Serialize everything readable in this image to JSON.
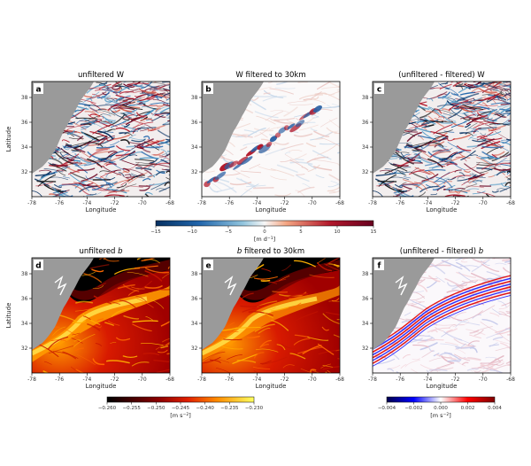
{
  "chart_data": [
    {
      "type": "heatmap",
      "panel": "a",
      "title": "unfiltered W",
      "xlabel": "Longitude",
      "ylabel": "Latitude",
      "xticks": [
        "-78",
        "-76",
        "-74",
        "-72",
        "-70",
        "-68"
      ],
      "yticks": [
        "38",
        "36",
        "34",
        "32"
      ],
      "field": "vertical-velocity-unfiltered"
    },
    {
      "type": "heatmap",
      "panel": "b",
      "title": "W filtered to 30km",
      "xlabel": "Longitude",
      "ylabel": "",
      "xticks": [
        "-78",
        "-76",
        "-74",
        "-72",
        "-70",
        "-68"
      ],
      "yticks": [
        "38",
        "36",
        "34",
        "32"
      ],
      "field": "vertical-velocity-filtered"
    },
    {
      "type": "heatmap",
      "panel": "c",
      "title": "(unfiltered - filtered) W",
      "xlabel": "Longitude",
      "ylabel": "",
      "xticks": [
        "-78",
        "-76",
        "-74",
        "-72",
        "-70",
        "-68"
      ],
      "yticks": [
        "38",
        "36",
        "34",
        "32"
      ],
      "field": "vertical-velocity-difference"
    },
    {
      "type": "heatmap",
      "panel": "d",
      "title_prefix": "unfiltered ",
      "title_var": "b",
      "title_suffix": "",
      "xlabel": "Longitude",
      "ylabel": "Latitude",
      "xticks": [
        "-78",
        "-76",
        "-74",
        "-72",
        "-70",
        "-68"
      ],
      "yticks": [
        "38",
        "36",
        "34",
        "32"
      ],
      "field": "buoyancy-unfiltered"
    },
    {
      "type": "heatmap",
      "panel": "e",
      "title_prefix": "",
      "title_var": "b",
      "title_suffix": " filtered to 30km",
      "xlabel": "Longitude",
      "ylabel": "",
      "xticks": [
        "-78",
        "-76",
        "-74",
        "-72",
        "-70",
        "-68"
      ],
      "yticks": [
        "38",
        "36",
        "34",
        "32"
      ],
      "field": "buoyancy-filtered"
    },
    {
      "type": "heatmap",
      "panel": "f",
      "title_prefix": "(unfiltered - filtered) ",
      "title_var": "b",
      "title_suffix": "",
      "xlabel": "Longitude",
      "ylabel": "",
      "xticks": [
        "-78",
        "-76",
        "-74",
        "-72",
        "-70",
        "-68"
      ],
      "yticks": [
        "38",
        "36",
        "34",
        "32"
      ],
      "field": "buoyancy-difference"
    }
  ],
  "colorbars": {
    "w": {
      "ticks": [
        "−15",
        "−10",
        "−5",
        "0",
        "5",
        "10",
        "15"
      ],
      "unit_prefix": "[m d",
      "unit_exp": "−1",
      "unit_suffix": "]",
      "colormap": "diverging-blue-red"
    },
    "b": {
      "ticks": [
        "−0.260",
        "−0.255",
        "−0.250",
        "−0.245",
        "−0.240",
        "−0.235",
        "−0.230"
      ],
      "unit_prefix": "[m s",
      "unit_exp": "−2",
      "unit_suffix": "]",
      "colormap": "hot"
    },
    "db": {
      "ticks": [
        "−0.004",
        "−0.002",
        "0.000",
        "0.002",
        "0.004"
      ],
      "unit_prefix": "[m s",
      "unit_exp": "−2",
      "unit_suffix": "]",
      "colormap": "seismic"
    }
  },
  "colors": {
    "land": "#9a9a9a",
    "blue": "#1f4e9a",
    "red": "#b01e23",
    "black": "#000000",
    "yellow": "#f5e64a"
  }
}
